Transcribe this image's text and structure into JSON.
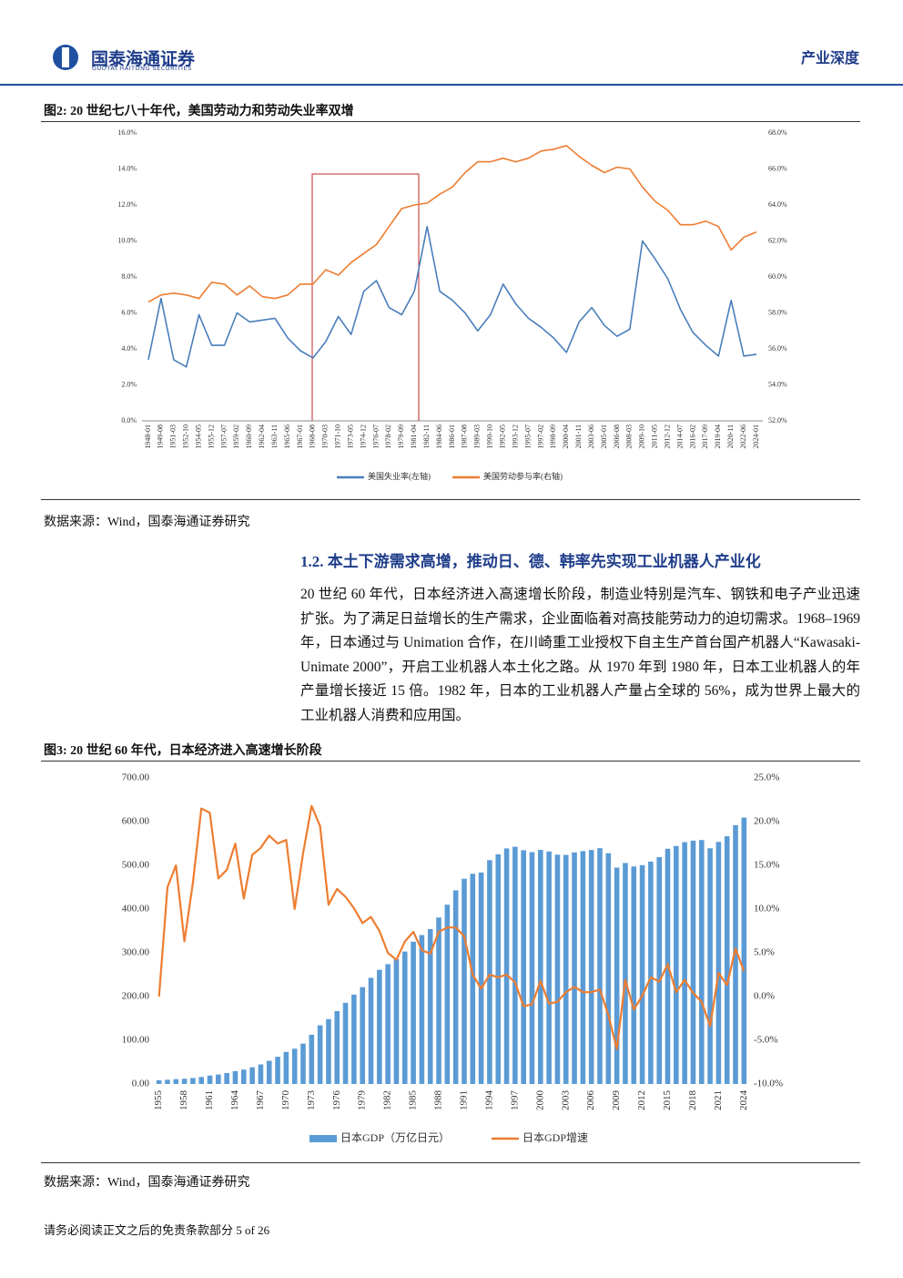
{
  "header": {
    "brand": "国泰海通证券",
    "brand_en": "GUOTAI HAITONG SECURITIES",
    "tag": "产业深度"
  },
  "figure2": {
    "title": "图2:  20 世纪七八十年代，美国劳动力和劳动失业率双增",
    "source": "数据来源：Wind，国泰海通证券研究"
  },
  "section": {
    "heading": "1.2. 本土下游需求高增，推动日、德、韩率先实现工业机器人产业化",
    "paragraph": "20 世纪 60 年代，日本经济进入高速增长阶段，制造业特别是汽车、钢铁和电子产业迅速扩张。为了满足日益增长的生产需求，企业面临着对高技能劳动力的迫切需求。1968–1969 年，日本通过与 Unimation 合作，在川崎重工业授权下自主生产首台国产机器人“Kawasaki-Unimate 2000”，开启工业机器人本土化之路。从 1970 年到 1980 年，日本工业机器人的年产量增长接近 15 倍。1982 年，日本的工业机器人产量占全球的 56%，成为世界上最大的工业机器人消费和应用国。"
  },
  "figure3": {
    "title": "图3:  20 世纪 60 年代，日本经济进入高速增长阶段",
    "source": "数据来源：Wind，国泰海通证券研究"
  },
  "footer": {
    "text": "请务必阅读正文之后的免责条款部分 5 of 26"
  },
  "chart_data": [
    {
      "type": "line",
      "categories": [
        "1948-01",
        "1949-08",
        "1951-03",
        "1952-10",
        "1954-05",
        "1955-12",
        "1957-07",
        "1959-02",
        "1960-09",
        "1962-04",
        "1963-11",
        "1965-06",
        "1967-01",
        "1968-08",
        "1970-03",
        "1971-10",
        "1973-05",
        "1974-12",
        "1976-07",
        "1978-02",
        "1979-09",
        "1981-04",
        "1982-11",
        "1984-06",
        "1986-01",
        "1987-08",
        "1989-03",
        "1990-10",
        "1992-05",
        "1993-12",
        "1995-07",
        "1997-02",
        "1998-09",
        "2000-04",
        "2001-11",
        "2003-06",
        "2005-01",
        "2006-08",
        "2008-03",
        "2009-10",
        "2011-05",
        "2012-12",
        "2014-07",
        "2016-02",
        "2017-09",
        "2019-04",
        "2020-11",
        "2022-06",
        "2024-01"
      ],
      "series": [
        {
          "name": "美国失业率(左轴)",
          "color": "#4a7ebb",
          "axis": "y",
          "values": [
            3.4,
            6.8,
            3.4,
            3.0,
            5.9,
            4.2,
            4.2,
            6.0,
            5.5,
            5.6,
            5.7,
            4.6,
            3.9,
            3.5,
            4.4,
            5.8,
            4.8,
            7.2,
            7.8,
            6.3,
            5.9,
            7.2,
            10.8,
            7.2,
            6.7,
            6.0,
            5.0,
            5.9,
            7.6,
            6.5,
            5.7,
            5.2,
            4.6,
            3.8,
            5.5,
            6.3,
            5.3,
            4.7,
            5.1,
            10.0,
            9.0,
            7.9,
            6.2,
            4.9,
            4.2,
            3.6,
            6.7,
            3.6,
            3.7
          ]
        },
        {
          "name": "美国劳动参与率(右轴)",
          "color": "#ed7d31",
          "axis": "y2",
          "values": [
            58.6,
            59.0,
            59.1,
            59.0,
            58.8,
            59.7,
            59.6,
            59.0,
            59.5,
            58.9,
            58.8,
            59.0,
            59.6,
            59.6,
            60.4,
            60.1,
            60.8,
            61.3,
            61.8,
            62.8,
            63.8,
            64.0,
            64.1,
            64.6,
            65.0,
            65.8,
            66.4,
            66.4,
            66.6,
            66.4,
            66.6,
            67.0,
            67.1,
            67.3,
            66.7,
            66.2,
            65.8,
            66.1,
            66.0,
            65.0,
            64.2,
            63.7,
            62.9,
            62.9,
            63.1,
            62.8,
            61.5,
            62.2,
            62.5
          ]
        }
      ],
      "ylim": [
        0,
        16
      ],
      "yticks": [
        {
          "value": 0,
          "label": "0.0%"
        },
        {
          "value": 2,
          "label": "2.0%"
        },
        {
          "value": 4,
          "label": "4.0%"
        },
        {
          "value": 6,
          "label": "6.0%"
        },
        {
          "value": 8,
          "label": "8.0%"
        },
        {
          "value": 10,
          "label": "10.0%"
        },
        {
          "value": 12,
          "label": "12.0%"
        },
        {
          "value": 14,
          "label": "14.0%"
        },
        {
          "value": 16,
          "label": "16.0%"
        }
      ],
      "y2lim": [
        52,
        68
      ],
      "y2ticks": [
        {
          "value": 52,
          "label": "52.0%"
        },
        {
          "value": 54,
          "label": "54.0%"
        },
        {
          "value": 56,
          "label": "56.0%"
        },
        {
          "value": 58,
          "label": "58.0%"
        },
        {
          "value": 60,
          "label": "60.0%"
        },
        {
          "value": 62,
          "label": "62.0%"
        },
        {
          "value": 64,
          "label": "64.0%"
        },
        {
          "value": 66,
          "label": "66.0%"
        },
        {
          "value": 68,
          "label": "68.0%"
        }
      ],
      "legend": "bottom"
    },
    {
      "type": "combo",
      "categories": [
        "1955",
        null,
        null,
        "1958",
        null,
        null,
        "1961",
        null,
        null,
        "1964",
        null,
        null,
        "1967",
        null,
        null,
        "1970",
        null,
        null,
        "1973",
        null,
        null,
        "1976",
        null,
        null,
        "1979",
        null,
        null,
        "1982",
        null,
        null,
        "1985",
        null,
        null,
        "1988",
        null,
        null,
        "1991",
        null,
        null,
        "1994",
        null,
        null,
        "1997",
        null,
        null,
        "2000",
        null,
        null,
        "2003",
        null,
        null,
        "2006",
        null,
        null,
        "2009",
        null,
        null,
        "2012",
        null,
        null,
        "2015",
        null,
        null,
        "2018",
        null,
        null,
        "2021",
        null,
        null,
        "2024"
      ],
      "series": [
        {
          "name": "日本GDP（万亿日元）",
          "type": "bar",
          "color": "#5b9bd5",
          "axis": "y",
          "values": [
            8.6,
            9.7,
            11.1,
            11.9,
            13.6,
            16.0,
            19.3,
            21.6,
            25.0,
            29.5,
            32.9,
            38.2,
            44.7,
            53.0,
            62.1,
            73.3,
            80.7,
            92.4,
            112.5,
            134.2,
            148.3,
            166.6,
            185.6,
            204.4,
            221.5,
            242.8,
            261.1,
            274.1,
            285.1,
            302.9,
            325.4,
            340.6,
            354.2,
            380.7,
            410.1,
            442.8,
            469.4,
            480.8,
            483.7,
            511.9,
            525.3,
            538.7,
            542.5,
            534.6,
            530.3,
            535.4,
            531.7,
            524.5,
            523.9,
            529.6,
            532.6,
            535.2,
            539.3,
            527.8,
            494.9,
            505.5,
            497.4,
            500.5,
            508.7,
            518.8,
            538.0,
            544.4,
            553.1,
            556.6,
            557.9,
            539.1,
            553.6,
            566.5,
            591.9,
            609.3
          ]
        },
        {
          "name": "日本GDP增速",
          "type": "line",
          "color": "#ed7d31",
          "axis": "y2",
          "values": [
            0.0,
            12.5,
            15.0,
            6.3,
            13.0,
            21.5,
            21.0,
            13.5,
            14.5,
            17.5,
            11.2,
            16.2,
            17.0,
            18.4,
            17.5,
            17.9,
            10.0,
            16.4,
            21.8,
            19.5,
            10.5,
            12.3,
            11.4,
            10.1,
            8.4,
            9.1,
            7.5,
            5.0,
            4.2,
            6.3,
            7.4,
            5.3,
            4.9,
            7.4,
            7.9,
            7.9,
            6.9,
            2.5,
            0.9,
            2.5,
            2.2,
            2.5,
            1.6,
            -1.1,
            -0.9,
            1.8,
            -0.8,
            -0.6,
            0.5,
            1.1,
            0.5,
            0.5,
            0.8,
            -2.1,
            -6.0,
            1.9,
            -1.5,
            0.1,
            2.2,
            1.7,
            3.7,
            0.5,
            1.9,
            0.4,
            -0.6,
            -3.4,
            2.7,
            1.3,
            5.5,
            2.9
          ]
        }
      ],
      "ylim": [
        0,
        700
      ],
      "yticks": [
        {
          "value": 0,
          "label": "0.00"
        },
        {
          "value": 100,
          "label": "100.00"
        },
        {
          "value": 200,
          "label": "200.00"
        },
        {
          "value": 300,
          "label": "300.00"
        },
        {
          "value": 400,
          "label": "400.00"
        },
        {
          "value": 500,
          "label": "500.00"
        },
        {
          "value": 600,
          "label": "600.00"
        },
        {
          "value": 700,
          "label": "700.00"
        }
      ],
      "y2lim": [
        -10,
        25
      ],
      "y2ticks": [
        {
          "value": -10,
          "label": "-10.0%"
        },
        {
          "value": -5,
          "label": "-5.0%"
        },
        {
          "value": 0,
          "label": "0.0%"
        },
        {
          "value": 5,
          "label": "5.0%"
        },
        {
          "value": 10,
          "label": "10.0%"
        },
        {
          "value": 15,
          "label": "15.0%"
        },
        {
          "value": 20,
          "label": "20.0%"
        },
        {
          "value": 25,
          "label": "25.0%"
        }
      ],
      "legend": "bottom"
    }
  ]
}
